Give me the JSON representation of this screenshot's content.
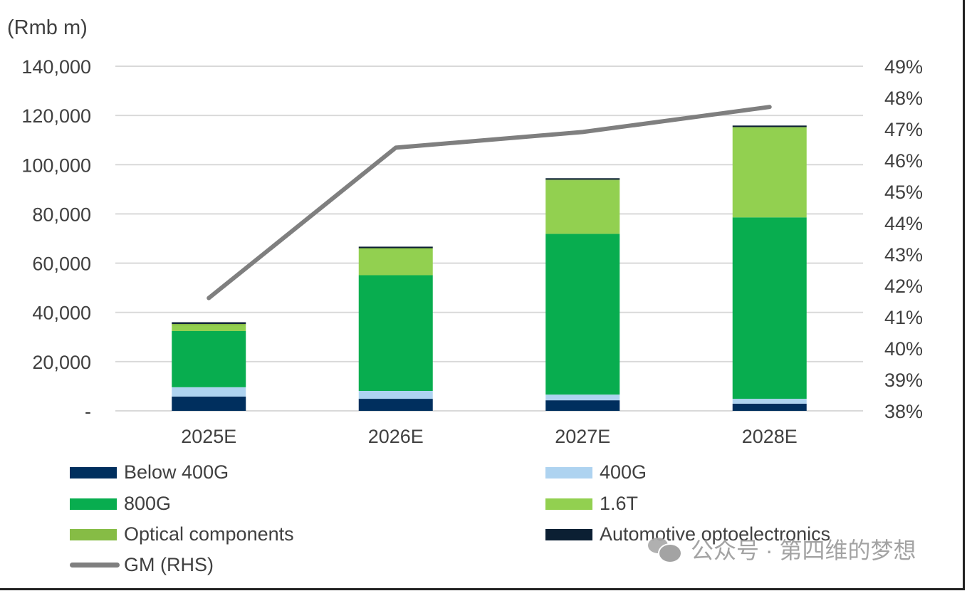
{
  "chart_data": {
    "type": "bar",
    "stacked": true,
    "title": "",
    "unit_label": "(Rmb m)",
    "xlabel": "",
    "ylabel": "(Rmb m)",
    "y2label": "GM (RHS)",
    "categories": [
      "2025E",
      "2026E",
      "2027E",
      "2028E"
    ],
    "ylim": [
      0,
      140000
    ],
    "y_ticks": [
      0,
      20000,
      40000,
      60000,
      80000,
      100000,
      120000,
      140000
    ],
    "y_tick_labels": [
      "-",
      "20,000",
      "40,000",
      "60,000",
      "80,000",
      "100,000",
      "120,000",
      "140,000"
    ],
    "y2lim": [
      38,
      49
    ],
    "y2_ticks": [
      38,
      39,
      40,
      41,
      42,
      43,
      44,
      45,
      46,
      47,
      48,
      49
    ],
    "y2_tick_labels": [
      "38%",
      "39%",
      "40%",
      "41%",
      "42%",
      "43%",
      "44%",
      "45%",
      "46%",
      "47%",
      "48%",
      "49%"
    ],
    "grid": true,
    "legend_position": "bottom",
    "series": [
      {
        "name": "Below 400G",
        "kind": "bar",
        "color": "#002f5e",
        "values": [
          5800,
          4900,
          4300,
          2900
        ]
      },
      {
        "name": "400G",
        "kind": "bar",
        "color": "#aed3f0",
        "values": [
          3800,
          3200,
          2300,
          2000
        ]
      },
      {
        "name": "800G",
        "kind": "bar",
        "color": "#08ad4f",
        "values": [
          22800,
          47000,
          65300,
          73700
        ]
      },
      {
        "name": "1.6T",
        "kind": "bar",
        "color": "#92d050",
        "values": [
          2300,
          10700,
          21700,
          36400
        ]
      },
      {
        "name": "Optical components",
        "kind": "bar",
        "color": "#86bc45",
        "values": [
          600,
          300,
          300,
          300
        ]
      },
      {
        "name": "Automotive optoelectronics",
        "kind": "bar",
        "color": "#0b1f33",
        "values": [
          700,
          600,
          600,
          600
        ]
      },
      {
        "name": "GM (RHS)",
        "kind": "line",
        "axis": "right",
        "color": "#7f7f7f",
        "values": [
          41.6,
          46.4,
          46.9,
          47.7
        ]
      }
    ]
  },
  "legend": {
    "items": [
      {
        "name": "Below 400G",
        "color": "#002f5e",
        "type": "bar"
      },
      {
        "name": "400G",
        "color": "#aed3f0",
        "type": "bar"
      },
      {
        "name": "800G",
        "color": "#08ad4f",
        "type": "bar"
      },
      {
        "name": "1.6T",
        "color": "#92d050",
        "type": "bar"
      },
      {
        "name": "Optical components",
        "color": "#86bc45",
        "type": "bar"
      },
      {
        "name": "Automotive optoelectronics",
        "color": "#0b1f33",
        "type": "bar"
      },
      {
        "name": "GM  (RHS)",
        "color": "#7f7f7f",
        "type": "line"
      }
    ]
  },
  "watermark": {
    "text": "公众号 · 第四维的梦想",
    "icon": "wechat-icon"
  }
}
